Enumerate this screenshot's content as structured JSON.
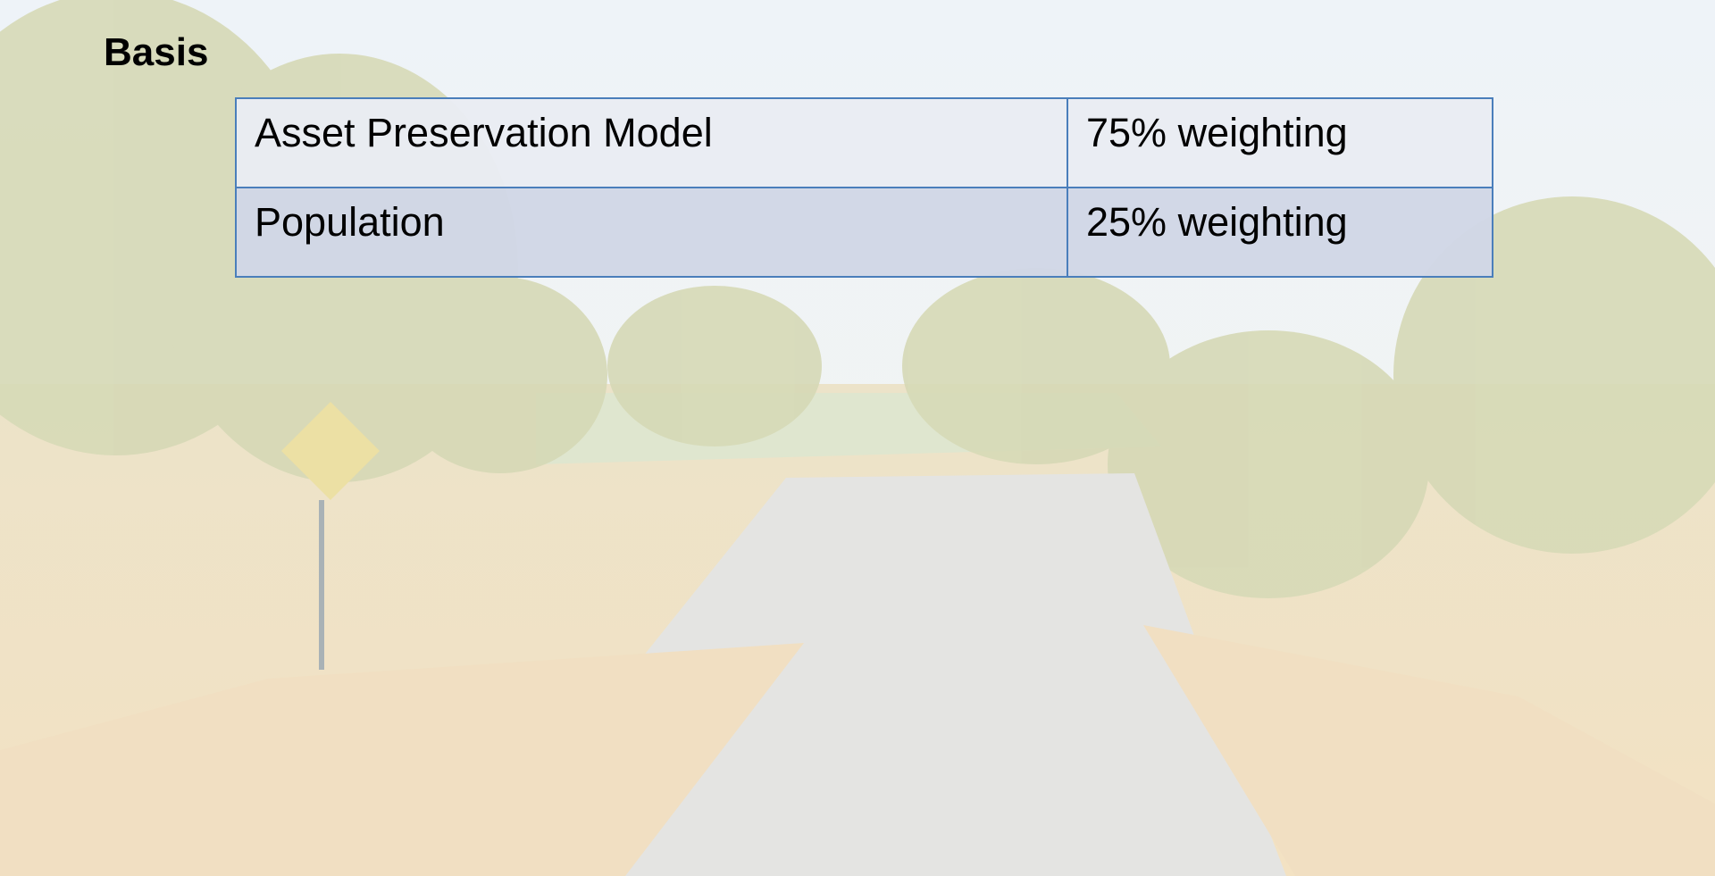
{
  "header": {
    "title": "Basis"
  },
  "table": {
    "rows": [
      [
        "Asset Preservation Model",
        "75% weighting"
      ],
      [
        "Population",
        "25% weighting"
      ]
    ]
  }
}
